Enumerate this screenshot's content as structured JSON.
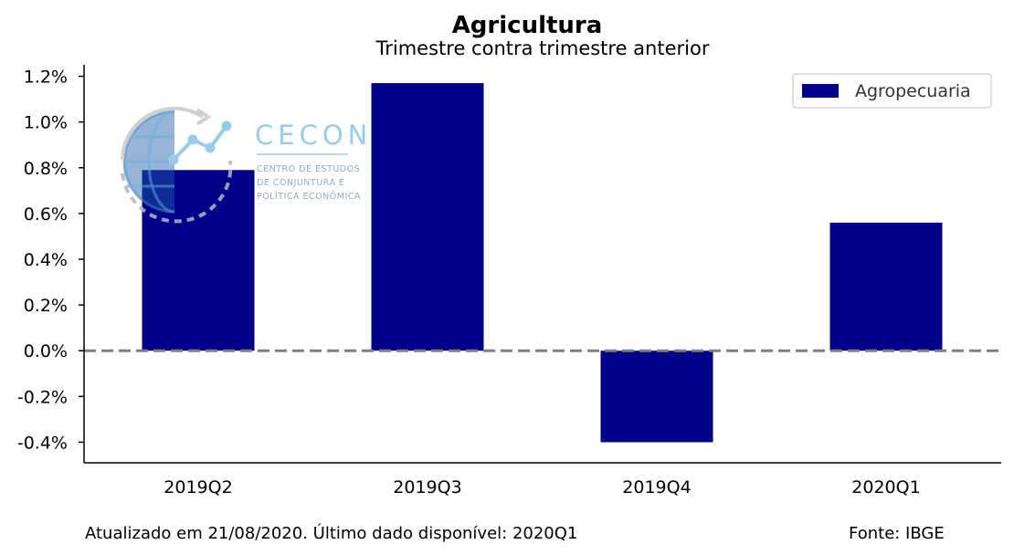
{
  "chart_data": {
    "type": "bar",
    "title": "Agricultura",
    "subtitle": "Trimestre contra trimestre anterior",
    "categories": [
      "2019Q2",
      "2019Q3",
      "2019Q4",
      "2020Q1"
    ],
    "series": [
      {
        "name": "Agropecuaria",
        "values": [
          0.79,
          1.17,
          -0.4,
          0.56
        ],
        "color": "#00008b"
      }
    ],
    "ylim": [
      -0.49,
      1.25
    ],
    "yticks": [
      -0.4,
      -0.2,
      0.0,
      0.2,
      0.4,
      0.6,
      0.8,
      1.0,
      1.2
    ],
    "ytick_format": "percent_1dp",
    "zero_line": {
      "value": 0,
      "style": "dashed",
      "color": "#808080"
    },
    "legend_position": "top-right",
    "grid": false
  },
  "footer": {
    "updated": "Atualizado em 21/08/2020. Último dado disponível: 2020Q1",
    "source": "Fonte: IBGE"
  },
  "logo": {
    "name": "CECON",
    "line1": "CENTRO DE ESTUDOS",
    "line2": "DE CONJUNTURA E",
    "line3": "POLÍTICA ECONÔMICA"
  }
}
